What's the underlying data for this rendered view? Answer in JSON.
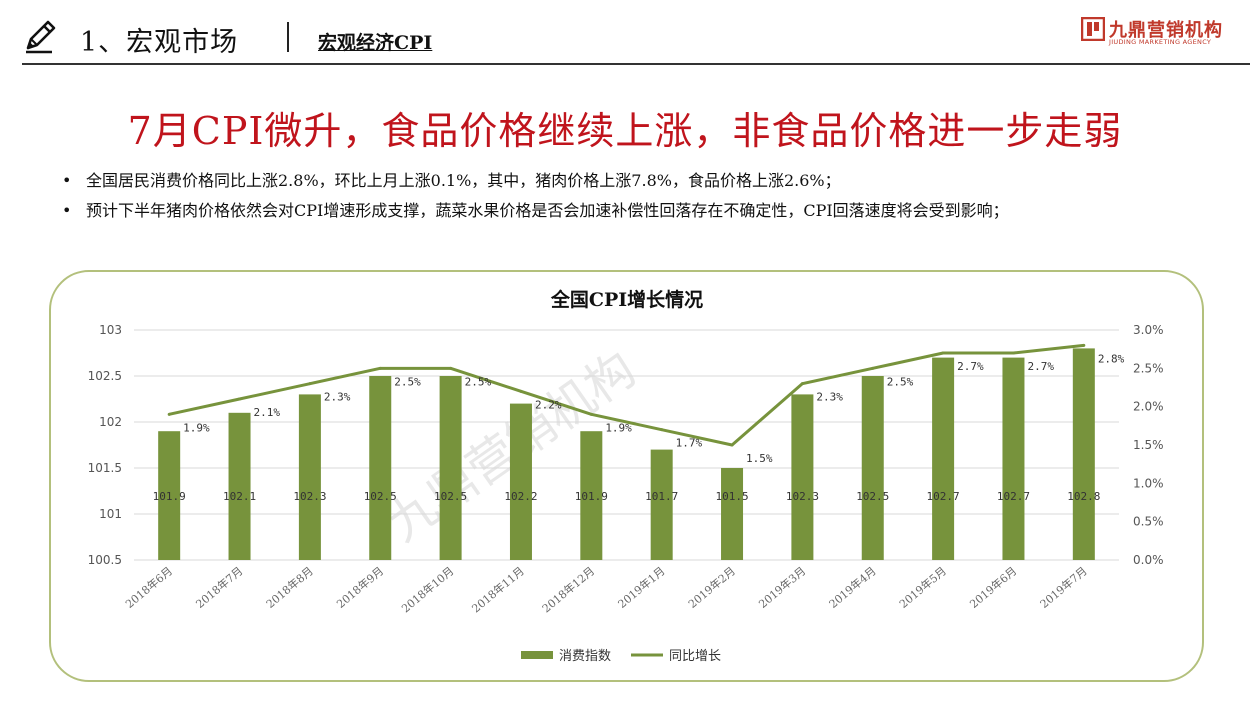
{
  "header": {
    "section_title": "1、宏观市场",
    "section_sub": "宏观经济CPI",
    "logo_cn": "九鼎营销机构",
    "logo_en": "JIUDING MARKETING AGENCY"
  },
  "headline": "7月CPI微升，食品价格继续上涨，非食品价格进一步走弱",
  "bullets": [
    "全国居民消费价格同比上涨2.8%，环比上月上涨0.1%，其中，猪肉价格上涨7.8%，食品价格上涨2.6%；",
    "预计下半年猪肉价格依然会对CPI增速形成支撑，蔬菜水果价格是否会加速补偿性回落存在不确定性，CPI回落速度将会受到影响；"
  ],
  "bullet_symbol": "•",
  "watermark": "九鼎营销机构",
  "colors": {
    "accent_red": "#c0141c",
    "bar": "#77933c",
    "line": "#77933c",
    "frame": "#b3c07c"
  },
  "chart_data": {
    "type": "bar",
    "title": "全国CPI增长情况",
    "categories": [
      "2018年6月",
      "2018年7月",
      "2018年8月",
      "2018年9月",
      "2018年10月",
      "2018年11月",
      "2018年12月",
      "2019年1月",
      "2019年2月",
      "2019年3月",
      "2019年4月",
      "2019年5月",
      "2019年6月",
      "2019年7月"
    ],
    "series": [
      {
        "name": "消费指数",
        "type": "bar",
        "axis": "left",
        "values": [
          101.9,
          102.1,
          102.3,
          102.5,
          102.5,
          102.2,
          101.9,
          101.7,
          101.5,
          102.3,
          102.5,
          102.7,
          102.7,
          102.8
        ],
        "labels": [
          "101.9",
          "102.1",
          "102.3",
          "102.5",
          "102.5",
          "102.2",
          "101.9",
          "101.7",
          "101.5",
          "102.3",
          "102.5",
          "102.7",
          "102.7",
          "102.8"
        ]
      },
      {
        "name": "同比增长",
        "type": "line",
        "axis": "right",
        "values": [
          1.9,
          2.1,
          2.3,
          2.5,
          2.5,
          2.2,
          1.9,
          1.7,
          1.5,
          2.3,
          2.5,
          2.7,
          2.7,
          2.8
        ],
        "labels": [
          "1.9%",
          "2.1%",
          "2.3%",
          "2.5%",
          "2.5%",
          "2.2%",
          "1.9%",
          "1.7%",
          "1.5%",
          "2.3%",
          "2.5%",
          "2.7%",
          "2.7%",
          "2.8%"
        ]
      }
    ],
    "y_left": {
      "min": 100.5,
      "max": 103,
      "ticks": [
        "100.5",
        "101",
        "101.5",
        "102",
        "102.5",
        "103"
      ]
    },
    "y_right": {
      "min": 0,
      "max": 3,
      "ticks": [
        "0.0%",
        "0.5%",
        "1.0%",
        "1.5%",
        "2.0%",
        "2.5%",
        "3.0%"
      ]
    },
    "grid": true,
    "legend": "bottom"
  }
}
